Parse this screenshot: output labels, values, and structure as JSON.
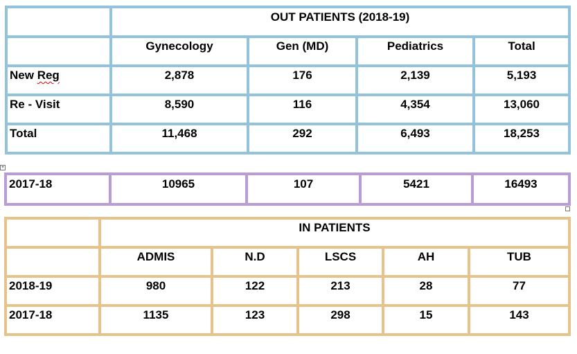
{
  "out_patients": {
    "title": "OUT PATIENTS (2018-19)",
    "columns": [
      "Gynecology",
      "Gen (MD)",
      "Pediatrics",
      "Total"
    ],
    "rows": [
      {
        "label": "New Reg",
        "values": [
          "2,878",
          "176",
          "2,139",
          "5,193"
        ]
      },
      {
        "label": "Re - Visit",
        "values": [
          "8,590",
          "116",
          "4,354",
          "13,060"
        ]
      },
      {
        "label": "Total",
        "values": [
          "11,468",
          "292",
          "6,493",
          "18,253"
        ]
      }
    ]
  },
  "comparison": {
    "label": "2017-18",
    "values": [
      "10965",
      "107",
      "5421",
      "16493"
    ]
  },
  "in_patients": {
    "title": "IN PATIENTS",
    "columns": [
      "ADMIS",
      "N.D",
      "LSCS",
      "AH",
      "TUB"
    ],
    "rows": [
      {
        "label": "2018-19",
        "values": [
          "980",
          "122",
          "213",
          "28",
          "77"
        ]
      },
      {
        "label": "2017-18",
        "values": [
          "1135",
          "123",
          "298",
          "15",
          "143"
        ]
      }
    ]
  },
  "colors": {
    "out_patients_border": "#92c2dc",
    "comparison_border": "#b99bd6",
    "in_patients_border": "#e6c38b"
  }
}
